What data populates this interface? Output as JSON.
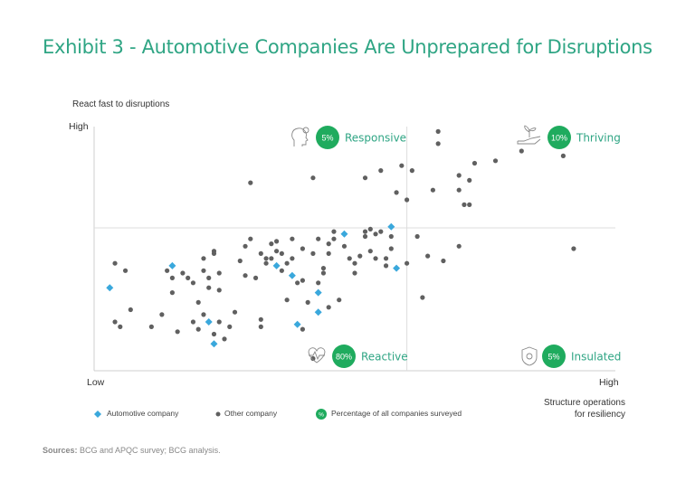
{
  "title": "Exhibit 3 - Automotive Companies Are Unprepared for Disruptions",
  "source_label": "Sources:",
  "source_text": " BCG and APQC survey; BCG analysis.",
  "colors": {
    "title": "#2fa584",
    "badge": "#1fab5e",
    "auto": "#3aa8dc",
    "other": "#606060"
  },
  "chart_data": {
    "type": "scatter",
    "ylabel": "React fast to disruptions",
    "xlabel_line1": "Structure operations",
    "xlabel_line2": "for resiliency",
    "xlim": [
      0,
      1
    ],
    "ylim": [
      0,
      1
    ],
    "y_tick_high": "High",
    "x_tick_low": "Low",
    "x_tick_high": "High",
    "quadrants": [
      {
        "name": "Responsive",
        "pct": "5%",
        "icon": "head-gear-icon"
      },
      {
        "name": "Thriving",
        "pct": "10%",
        "icon": "hand-plant-icon"
      },
      {
        "name": "Reactive",
        "pct": "80%",
        "icon": "heart-pulse-icon"
      },
      {
        "name": "Insulated",
        "pct": "5%",
        "icon": "shield-gear-icon"
      }
    ],
    "legend": [
      {
        "label": "Automotive company",
        "marker": "diamond"
      },
      {
        "label": "Other company",
        "marker": "dot"
      },
      {
        "label": "Percentage of all companies surveyed",
        "marker": "badge"
      }
    ],
    "series": [
      {
        "name": "Automotive company",
        "marker": "diamond",
        "points": [
          [
            0.03,
            0.34
          ],
          [
            0.15,
            0.43
          ],
          [
            0.22,
            0.2
          ],
          [
            0.23,
            0.11
          ],
          [
            0.35,
            0.43
          ],
          [
            0.38,
            0.39
          ],
          [
            0.39,
            0.19
          ],
          [
            0.43,
            0.32
          ],
          [
            0.43,
            0.24
          ],
          [
            0.48,
            0.56
          ],
          [
            0.57,
            0.59
          ],
          [
            0.58,
            0.42
          ]
        ]
      },
      {
        "name": "Other company",
        "marker": "dot",
        "points": [
          [
            0.04,
            0.2
          ],
          [
            0.04,
            0.44
          ],
          [
            0.05,
            0.18
          ],
          [
            0.06,
            0.41
          ],
          [
            0.07,
            0.25
          ],
          [
            0.11,
            0.18
          ],
          [
            0.13,
            0.23
          ],
          [
            0.14,
            0.41
          ],
          [
            0.15,
            0.38
          ],
          [
            0.15,
            0.32
          ],
          [
            0.16,
            0.16
          ],
          [
            0.17,
            0.4
          ],
          [
            0.18,
            0.38
          ],
          [
            0.19,
            0.2
          ],
          [
            0.19,
            0.36
          ],
          [
            0.2,
            0.28
          ],
          [
            0.2,
            0.17
          ],
          [
            0.21,
            0.46
          ],
          [
            0.21,
            0.41
          ],
          [
            0.21,
            0.23
          ],
          [
            0.22,
            0.34
          ],
          [
            0.22,
            0.38
          ],
          [
            0.23,
            0.49
          ],
          [
            0.23,
            0.48
          ],
          [
            0.23,
            0.15
          ],
          [
            0.24,
            0.4
          ],
          [
            0.24,
            0.33
          ],
          [
            0.24,
            0.2
          ],
          [
            0.25,
            0.13
          ],
          [
            0.26,
            0.18
          ],
          [
            0.27,
            0.24
          ],
          [
            0.28,
            0.45
          ],
          [
            0.29,
            0.39
          ],
          [
            0.29,
            0.51
          ],
          [
            0.3,
            0.54
          ],
          [
            0.3,
            0.77
          ],
          [
            0.31,
            0.38
          ],
          [
            0.32,
            0.21
          ],
          [
            0.32,
            0.48
          ],
          [
            0.32,
            0.18
          ],
          [
            0.33,
            0.46
          ],
          [
            0.33,
            0.44
          ],
          [
            0.34,
            0.52
          ],
          [
            0.34,
            0.46
          ],
          [
            0.35,
            0.53
          ],
          [
            0.35,
            0.49
          ],
          [
            0.36,
            0.48
          ],
          [
            0.36,
            0.41
          ],
          [
            0.37,
            0.44
          ],
          [
            0.37,
            0.29
          ],
          [
            0.38,
            0.54
          ],
          [
            0.38,
            0.46
          ],
          [
            0.39,
            0.36
          ],
          [
            0.4,
            0.5
          ],
          [
            0.4,
            0.37
          ],
          [
            0.4,
            0.17
          ],
          [
            0.41,
            0.28
          ],
          [
            0.42,
            0.05
          ],
          [
            0.42,
            0.79
          ],
          [
            0.42,
            0.48
          ],
          [
            0.43,
            0.54
          ],
          [
            0.43,
            0.36
          ],
          [
            0.44,
            0.42
          ],
          [
            0.44,
            0.4
          ],
          [
            0.45,
            0.52
          ],
          [
            0.45,
            0.48
          ],
          [
            0.45,
            0.26
          ],
          [
            0.46,
            0.57
          ],
          [
            0.46,
            0.54
          ],
          [
            0.47,
            0.29
          ],
          [
            0.48,
            0.51
          ],
          [
            0.49,
            0.46
          ],
          [
            0.5,
            0.4
          ],
          [
            0.5,
            0.44
          ],
          [
            0.51,
            0.47
          ],
          [
            0.52,
            0.55
          ],
          [
            0.52,
            0.57
          ],
          [
            0.52,
            0.79
          ],
          [
            0.53,
            0.58
          ],
          [
            0.53,
            0.49
          ],
          [
            0.54,
            0.56
          ],
          [
            0.54,
            0.46
          ],
          [
            0.55,
            0.57
          ],
          [
            0.55,
            0.82
          ],
          [
            0.56,
            0.46
          ],
          [
            0.56,
            0.43
          ],
          [
            0.57,
            0.5
          ],
          [
            0.57,
            0.55
          ],
          [
            0.58,
            0.73
          ],
          [
            0.59,
            0.84
          ],
          [
            0.6,
            0.44
          ],
          [
            0.6,
            0.7
          ],
          [
            0.61,
            0.82
          ],
          [
            0.62,
            0.55
          ],
          [
            0.63,
            0.3
          ],
          [
            0.64,
            0.47
          ],
          [
            0.65,
            0.74
          ],
          [
            0.66,
            0.93
          ],
          [
            0.66,
            0.98
          ],
          [
            0.67,
            0.45
          ],
          [
            0.7,
            0.74
          ],
          [
            0.7,
            0.51
          ],
          [
            0.7,
            0.8
          ],
          [
            0.71,
            0.68
          ],
          [
            0.72,
            0.68
          ],
          [
            0.72,
            0.78
          ],
          [
            0.73,
            0.85
          ],
          [
            0.77,
            0.86
          ],
          [
            0.82,
            0.9
          ],
          [
            0.9,
            0.88
          ],
          [
            0.92,
            0.5
          ]
        ]
      }
    ]
  }
}
